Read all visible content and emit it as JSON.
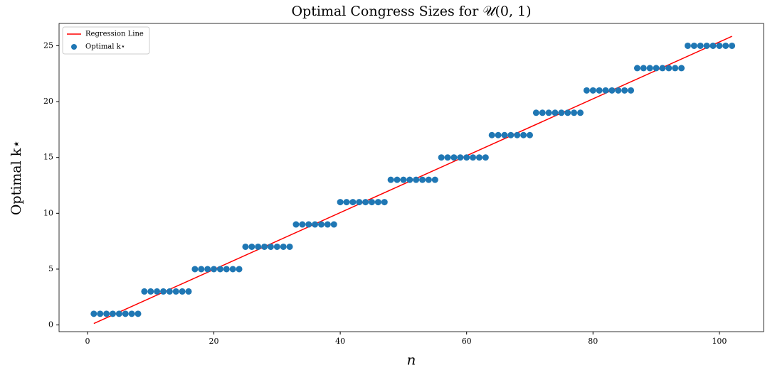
{
  "chart_data": {
    "type": "scatter",
    "title": "Optimal Congress Sizes for 𝒰(0, 1)",
    "x_label": "n",
    "y_label": "Optimal k⋆",
    "xlim": [
      -4.5,
      107
    ],
    "ylim": [
      -0.6,
      27
    ],
    "xticks": [
      0,
      20,
      40,
      60,
      80,
      100
    ],
    "yticks": [
      0,
      5,
      10,
      15,
      20,
      25
    ],
    "legend_position": "upper left",
    "series": [
      {
        "name": "Regression Line",
        "type": "line",
        "color": "#ff0000",
        "x": [
          1,
          102
        ],
        "values": [
          0.13,
          25.85
        ]
      },
      {
        "name": "Optimal k⋆",
        "type": "scatter",
        "color": "#1f77b4",
        "x": [
          1,
          2,
          3,
          4,
          5,
          6,
          7,
          8,
          9,
          10,
          11,
          12,
          13,
          14,
          15,
          16,
          17,
          18,
          19,
          20,
          21,
          22,
          23,
          24,
          25,
          26,
          27,
          28,
          29,
          30,
          31,
          32,
          33,
          34,
          35,
          36,
          37,
          38,
          39,
          40,
          41,
          42,
          43,
          44,
          45,
          46,
          47,
          48,
          49,
          50,
          51,
          52,
          53,
          54,
          55,
          56,
          57,
          58,
          59,
          60,
          61,
          62,
          63,
          64,
          65,
          66,
          67,
          68,
          69,
          70,
          71,
          72,
          73,
          74,
          75,
          76,
          77,
          78,
          79,
          80,
          81,
          82,
          83,
          84,
          85,
          86,
          87,
          88,
          89,
          90,
          91,
          92,
          93,
          94,
          95,
          96,
          97,
          98,
          99,
          100,
          101,
          102
        ],
        "values": [
          1,
          1,
          1,
          1,
          1,
          1,
          1,
          1,
          3,
          3,
          3,
          3,
          3,
          3,
          3,
          3,
          5,
          5,
          5,
          5,
          5,
          5,
          5,
          5,
          7,
          7,
          7,
          7,
          7,
          7,
          7,
          7,
          9,
          9,
          9,
          9,
          9,
          9,
          9,
          11,
          11,
          11,
          11,
          11,
          11,
          11,
          11,
          13,
          13,
          13,
          13,
          13,
          13,
          13,
          13,
          15,
          15,
          15,
          15,
          15,
          15,
          15,
          15,
          17,
          17,
          17,
          17,
          17,
          17,
          17,
          19,
          19,
          19,
          19,
          19,
          19,
          19,
          19,
          21,
          21,
          21,
          21,
          21,
          21,
          21,
          21,
          23,
          23,
          23,
          23,
          23,
          23,
          23,
          23,
          25,
          25,
          25,
          25,
          25,
          25,
          25,
          25
        ]
      }
    ]
  }
}
